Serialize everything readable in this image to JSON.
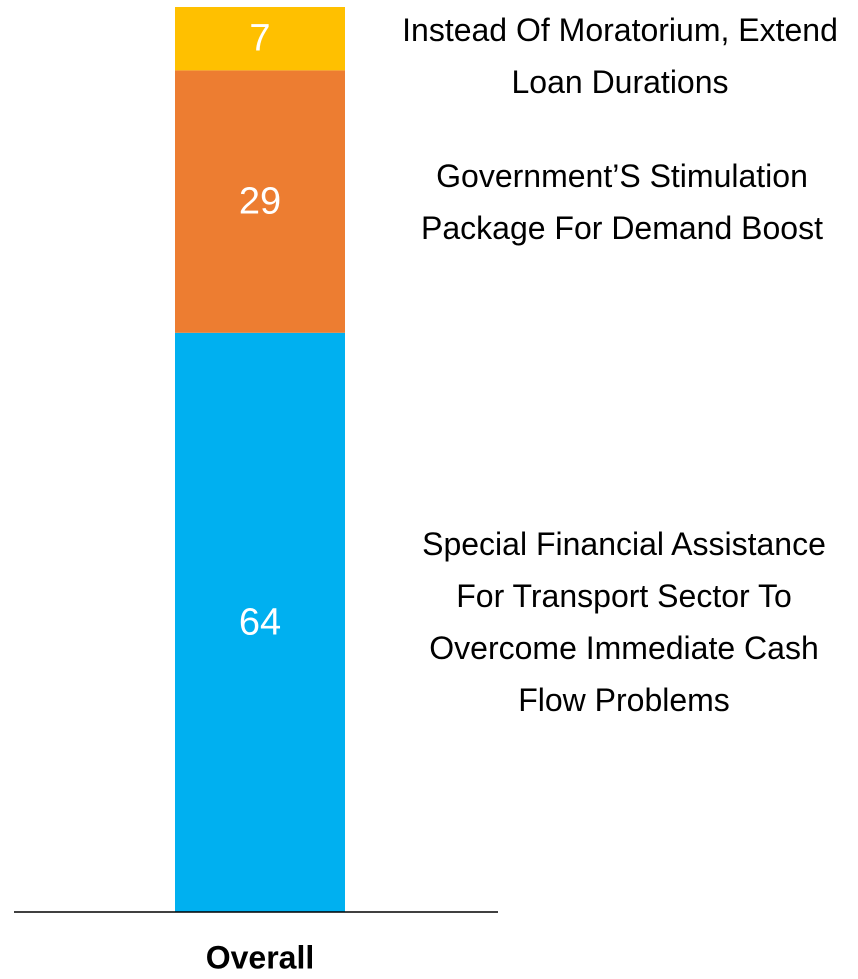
{
  "chart_data": {
    "type": "stacked-bar",
    "categories": [
      "Overall"
    ],
    "ylim": [
      0,
      100
    ],
    "series": [
      {
        "name": "Special Financial Assistance For Transport Sector To Overcome Immediate Cash Flow Problems",
        "color": "#00b0f0",
        "values": [
          64
        ]
      },
      {
        "name": "Government’S Stimulation Package For Demand Boost",
        "color": "#ed7d31",
        "values": [
          29
        ]
      },
      {
        "name": "Instead Of Moratorium, Extend Loan Durations",
        "color": "#ffc000",
        "values": [
          7
        ]
      }
    ]
  }
}
